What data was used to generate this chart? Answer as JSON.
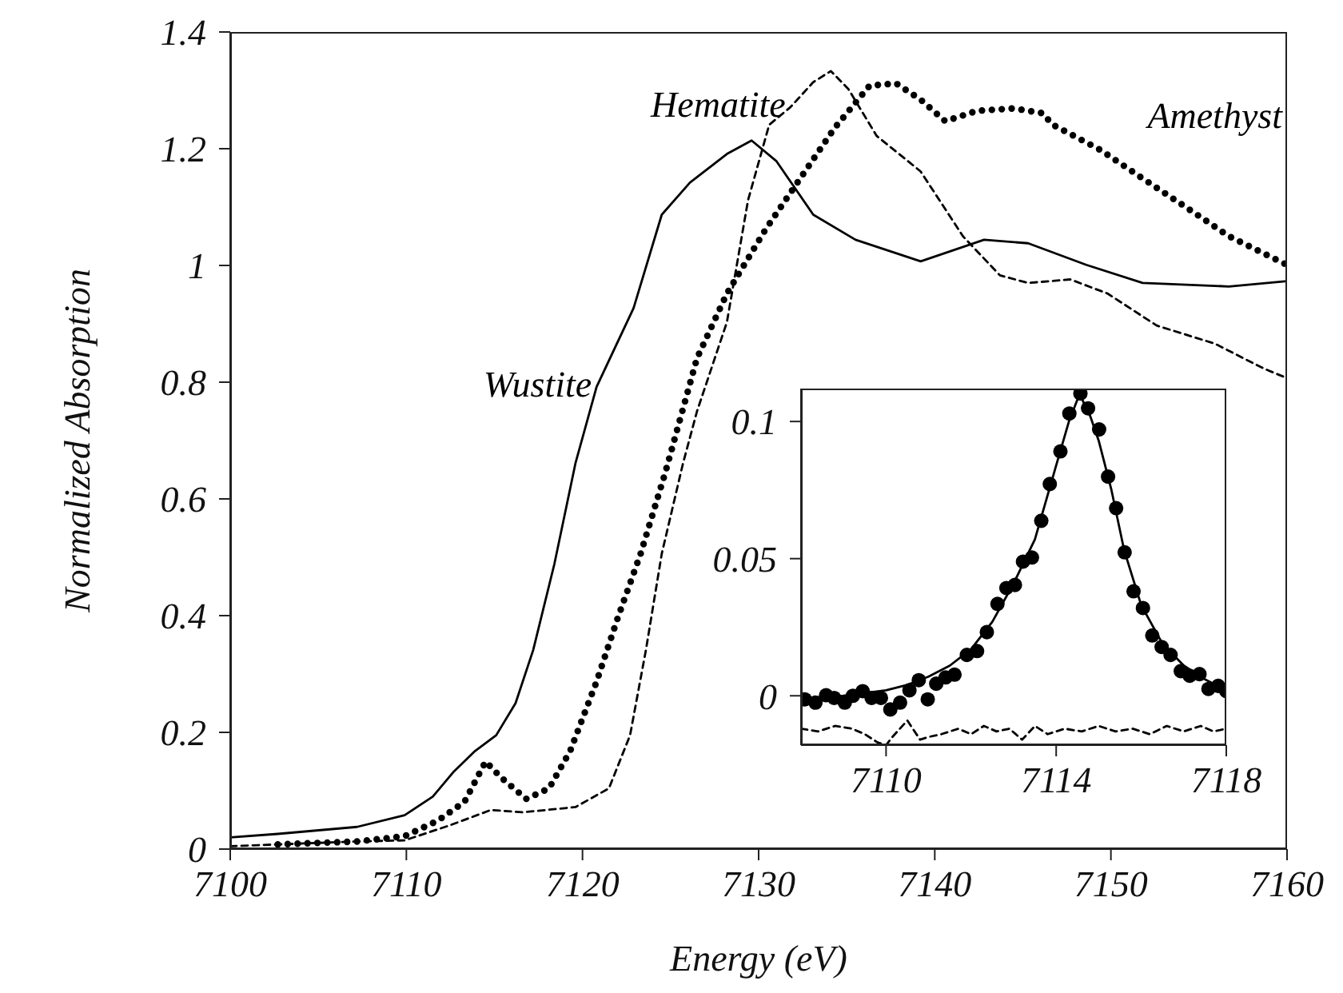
{
  "chart_data": [
    {
      "type": "line",
      "xlabel": "Energy (eV)",
      "ylabel": "Normalized Absorption",
      "xlim": [
        7100,
        7160
      ],
      "xticks": [
        7100,
        7110,
        7120,
        7130,
        7140,
        7150,
        7160
      ],
      "ylim": [
        0,
        1.4
      ],
      "yticks": [
        0,
        0.2,
        0.4,
        0.6,
        0.8,
        1,
        1.2,
        1.4
      ],
      "grid": false,
      "legend": false,
      "annotations": [
        {
          "text": "Wustite",
          "x": 7120.8,
          "y": 0.792
        },
        {
          "text": "Hematite",
          "x": 7131.8,
          "y": 1.271
        },
        "Amethyst"
      ],
      "series": [
        {
          "color": "#000000",
          "line_style": "solid",
          "x": [
            7100,
            7102.7,
            7107.2,
            7109.9,
            7111.5,
            7112.7,
            7113.9,
            7115.1,
            7116.2,
            7117.2,
            7118.4,
            7119.6,
            7120.8,
            7122.9,
            7124.5,
            7126.1,
            7128.2,
            7129.6,
            7131,
            7133.1,
            7135.5,
            7139.2,
            7142.8,
            7145.3,
            7148.6,
            7151.8,
            7156.7,
            7160
          ],
          "values": [
            0.02,
            0.026,
            0.038,
            0.058,
            0.09,
            0.133,
            0.168,
            0.195,
            0.25,
            0.341,
            0.488,
            0.661,
            0.792,
            0.927,
            1.087,
            1.142,
            1.191,
            1.214,
            1.179,
            1.087,
            1.044,
            1.007,
            1.044,
            1.038,
            1.001,
            0.97,
            0.964,
            0.973
          ]
        },
        {
          "color": "#000000",
          "line_style": "dashed",
          "x": [
            7100,
            7107.2,
            7109.9,
            7112.4,
            7114.8,
            7116.6,
            7119.6,
            7121.5,
            7122.7,
            7123.6,
            7124.5,
            7125.7,
            7126.5,
            7128.2,
            7129.4,
            7130.6,
            7131.8,
            7133.1,
            7134.1,
            7135.1,
            7136.7,
            7139.2,
            7141.6,
            7143.7,
            7145.3,
            7147.7,
            7149.8,
            7152.6,
            7155.9,
            7158.7,
            7160
          ],
          "values": [
            0.005,
            0.013,
            0.015,
            0.04,
            0.067,
            0.063,
            0.072,
            0.104,
            0.195,
            0.341,
            0.506,
            0.66,
            0.75,
            0.903,
            1.112,
            1.241,
            1.271,
            1.314,
            1.333,
            1.302,
            1.222,
            1.161,
            1.05,
            0.983,
            0.97,
            0.976,
            0.952,
            0.897,
            0.866,
            0.823,
            0.807
          ]
        },
        {
          "color": "#000000",
          "line_style": "dotted",
          "x": [
            7102.7,
            7107.2,
            7109.9,
            7111.8,
            7113.3,
            7114.5,
            7115.4,
            7116.8,
            7118.1,
            7119.3,
            7120.8,
            7122,
            7123.3,
            7124.7,
            7126.5,
            7128.2,
            7130.4,
            7132.2,
            7134.3,
            7136.3,
            7137.8,
            7139.2,
            7140.6,
            7142.4,
            7144.5,
            7146.1,
            7146.7,
            7149.4,
            7151.8,
            7154.3,
            7156.7,
            7160
          ],
          "values": [
            0.008,
            0.013,
            0.022,
            0.049,
            0.081,
            0.15,
            0.122,
            0.086,
            0.104,
            0.168,
            0.287,
            0.396,
            0.506,
            0.645,
            0.841,
            0.952,
            1.062,
            1.142,
            1.235,
            1.308,
            1.312,
            1.284,
            1.247,
            1.265,
            1.269,
            1.261,
            1.241,
            1.198,
            1.149,
            1.099,
            1.05,
            1.001
          ]
        }
      ]
    },
    {
      "type": "line",
      "xlim": [
        7108,
        7118
      ],
      "xticks": [
        7110,
        7114,
        7118
      ],
      "ylim": [
        -0.018,
        0.112
      ],
      "yticks": [
        0,
        0.05,
        0.1
      ],
      "grid": false,
      "legend": false,
      "series": [
        {
          "type": "scatter",
          "color": "#000000",
          "marker": "circle",
          "x": [
            7108.09,
            7108.34,
            7108.59,
            7108.78,
            7109.03,
            7109.22,
            7109.45,
            7109.66,
            7109.88,
            7110.1,
            7110.33,
            7110.55,
            7110.77,
            7110.98,
            7111.18,
            7111.4,
            7111.61,
            7111.9,
            7112.14,
            7112.37,
            7112.62,
            7112.83,
            7113.03,
            7113.22,
            7113.43,
            7113.65,
            7113.85,
            7114.1,
            7114.31,
            7114.57,
            7114.75,
            7115.01,
            7115.22,
            7115.41,
            7115.61,
            7115.82,
            7116.04,
            7116.26,
            7116.48,
            7116.69,
            7116.93,
            7117.14,
            7117.37,
            7117.58,
            7117.81,
            7118
          ],
          "values": [
            -0.0013,
            -0.0025,
            0.0002,
            -0.0008,
            -0.0025,
            0,
            0.0017,
            -0.0008,
            -0.0008,
            -0.005,
            -0.0025,
            0.002,
            0.0057,
            -0.0013,
            0.0044,
            0.0067,
            0.0077,
            0.0149,
            0.0163,
            0.0232,
            0.0335,
            0.0393,
            0.0404,
            0.0489,
            0.0504,
            0.0638,
            0.0772,
            0.0891,
            0.1029,
            0.1102,
            0.1048,
            0.0971,
            0.0799,
            0.0684,
            0.0523,
            0.0381,
            0.032,
            0.022,
            0.0178,
            0.0149,
            0.009,
            0.0073,
            0.0079,
            0.0025,
            0.0036,
            0.0017
          ]
        },
        {
          "color": "#000000",
          "line_style": "solid",
          "x": [
            7108,
            7109,
            7110,
            7110.5,
            7111,
            7111.5,
            7112,
            7112.5,
            7113,
            7113.5,
            7114,
            7114.3,
            7114.55,
            7114.8,
            7115,
            7115.3,
            7115.6,
            7116,
            7116.5,
            7117,
            7117.5,
            7118
          ],
          "values": [
            -0.001,
            0,
            0.002,
            0.004,
            0.007,
            0.011,
            0.017,
            0.027,
            0.041,
            0.057,
            0.084,
            0.1,
            0.11,
            0.102,
            0.093,
            0.075,
            0.053,
            0.033,
            0.019,
            0.011,
            0.006,
            0.002
          ]
        },
        {
          "color": "#000000",
          "line_style": "dashed",
          "x": [
            7108,
            7108.4,
            7108.8,
            7109.2,
            7109.5,
            7109.8,
            7110,
            7110.15,
            7110.5,
            7110.8,
            7111,
            7111.3,
            7111.7,
            7112,
            7112.3,
            7112.6,
            7112.9,
            7113.2,
            7113.5,
            7113.8,
            7114.2,
            7114.6,
            7115,
            7115.4,
            7115.8,
            7116.2,
            7116.6,
            7117,
            7117.4,
            7117.7,
            7118
          ],
          "values": [
            -0.012,
            -0.013,
            -0.011,
            -0.012,
            -0.014,
            -0.017,
            -0.018,
            -0.015,
            -0.009,
            -0.016,
            -0.015,
            -0.014,
            -0.012,
            -0.014,
            -0.011,
            -0.013,
            -0.012,
            -0.016,
            -0.011,
            -0.014,
            -0.012,
            -0.013,
            -0.011,
            -0.013,
            -0.012,
            -0.014,
            -0.011,
            -0.013,
            -0.011,
            -0.013,
            -0.012
          ]
        }
      ]
    }
  ]
}
